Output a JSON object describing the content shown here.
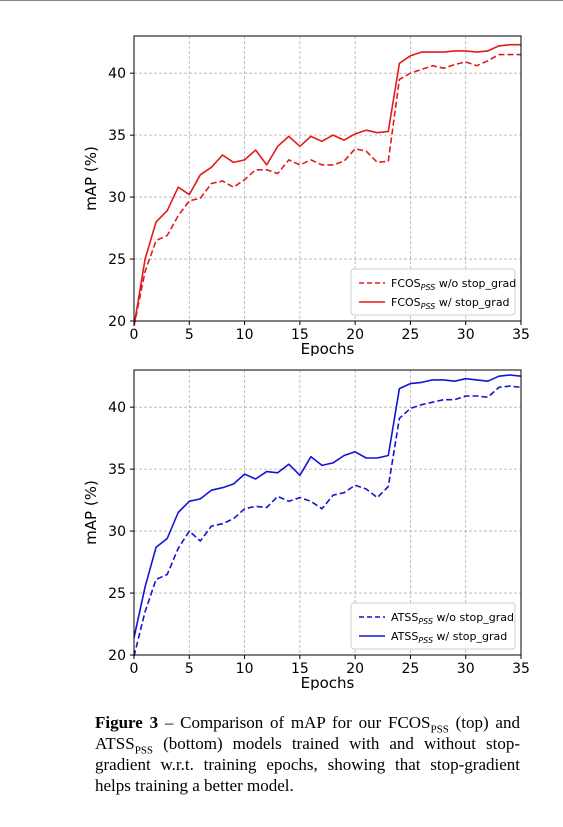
{
  "chart_data": [
    {
      "type": "line",
      "title": "",
      "xlabel": "Epochs",
      "ylabel": "mAP (%)",
      "xlim": [
        0,
        35
      ],
      "ylim": [
        20,
        43
      ],
      "xticks": [
        0,
        5,
        10,
        15,
        20,
        25,
        30,
        35
      ],
      "yticks": [
        20,
        25,
        30,
        35,
        40
      ],
      "grid": true,
      "legend_position": "bottom-right",
      "x": [
        0,
        1,
        2,
        3,
        4,
        5,
        6,
        7,
        8,
        9,
        10,
        11,
        12,
        13,
        14,
        15,
        16,
        17,
        18,
        19,
        20,
        21,
        22,
        23,
        24,
        25,
        26,
        27,
        28,
        29,
        30,
        31,
        32,
        33,
        34,
        35
      ],
      "series": [
        {
          "name_base": "FCOS",
          "name_sub": "PSS",
          "name_suffix": " w/o stop_grad",
          "color": "#e31a1c",
          "dash": true,
          "values": [
            19.6,
            24.0,
            26.5,
            26.9,
            28.5,
            29.7,
            29.9,
            31.1,
            31.3,
            30.8,
            31.4,
            32.2,
            32.2,
            31.9,
            33.0,
            32.6,
            33.0,
            32.6,
            32.6,
            32.9,
            33.9,
            33.7,
            32.8,
            32.9,
            39.5,
            40.0,
            40.3,
            40.6,
            40.4,
            40.7,
            40.9,
            40.6,
            41.0,
            41.5,
            41.5,
            41.5
          ]
        },
        {
          "name_base": "FCOS",
          "name_sub": "PSS",
          "name_suffix": " w/ stop_grad",
          "color": "#e31a1c",
          "dash": false,
          "values": [
            19.6,
            25.0,
            28.0,
            28.9,
            30.8,
            30.2,
            31.8,
            32.4,
            33.4,
            32.8,
            33.0,
            33.8,
            32.6,
            34.1,
            34.9,
            34.1,
            34.9,
            34.5,
            35.0,
            34.6,
            35.1,
            35.4,
            35.2,
            35.3,
            40.8,
            41.4,
            41.7,
            41.7,
            41.7,
            41.8,
            41.8,
            41.7,
            41.8,
            42.2,
            42.3,
            42.3
          ]
        }
      ]
    },
    {
      "type": "line",
      "title": "",
      "xlabel": "Epochs",
      "ylabel": "mAP (%)",
      "xlim": [
        0,
        35
      ],
      "ylim": [
        20,
        43
      ],
      "xticks": [
        0,
        5,
        10,
        15,
        20,
        25,
        30,
        35
      ],
      "yticks": [
        20,
        25,
        30,
        35,
        40
      ],
      "grid": true,
      "legend_position": "bottom-right",
      "x": [
        0,
        1,
        2,
        3,
        4,
        5,
        6,
        7,
        8,
        9,
        10,
        11,
        12,
        13,
        14,
        15,
        16,
        17,
        18,
        19,
        20,
        21,
        22,
        23,
        24,
        25,
        26,
        27,
        28,
        29,
        30,
        31,
        32,
        33,
        34,
        35
      ],
      "series": [
        {
          "name_base": "ATSS",
          "name_sub": "PSS",
          "name_suffix": " w/o stop_grad",
          "color": "#1414d4",
          "dash": true,
          "values": [
            19.9,
            23.5,
            26.1,
            26.5,
            28.6,
            30.0,
            29.2,
            30.4,
            30.6,
            31.0,
            31.8,
            32.0,
            31.9,
            32.8,
            32.4,
            32.7,
            32.4,
            31.8,
            32.9,
            33.1,
            33.7,
            33.4,
            32.7,
            33.6,
            39.1,
            39.9,
            40.2,
            40.4,
            40.6,
            40.6,
            40.9,
            40.9,
            40.8,
            41.6,
            41.7,
            41.6
          ]
        },
        {
          "name_base": "ATSS",
          "name_sub": "PSS",
          "name_suffix": " w/ stop_grad",
          "color": "#1414d4",
          "dash": false,
          "values": [
            21.4,
            25.5,
            28.7,
            29.4,
            31.5,
            32.4,
            32.6,
            33.3,
            33.5,
            33.8,
            34.6,
            34.2,
            34.8,
            34.7,
            35.4,
            34.5,
            36.0,
            35.3,
            35.5,
            36.1,
            36.4,
            35.9,
            35.9,
            36.1,
            41.5,
            41.9,
            42.0,
            42.2,
            42.2,
            42.1,
            42.3,
            42.2,
            42.1,
            42.5,
            42.6,
            42.5
          ]
        }
      ]
    }
  ],
  "caption": {
    "label": "Figure 3",
    "text_1": " – Comparison of mAP for our FCOS",
    "sub_1": "PSS",
    "text_2": " (top) and ATSS",
    "sub_2": "PSS",
    "text_3": " (bottom) models trained with and without stop-gradient w.r.t. training epochs, showing that stop-gradient helps training a better model."
  }
}
